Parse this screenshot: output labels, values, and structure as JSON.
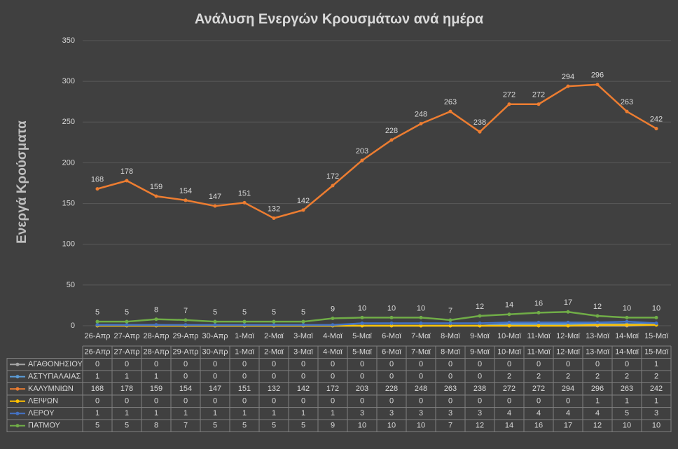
{
  "chart_data": {
    "type": "line",
    "title": "Ανάλυση Ενεργών Κρουσμάτων ανά ημέρα",
    "y_label": "Ενεργά Κρούσματα",
    "categories": [
      "26-Απρ",
      "27-Απρ",
      "28-Απρ",
      "29-Απρ",
      "30-Απρ",
      "1-Μαϊ",
      "2-Μαϊ",
      "3-Μαϊ",
      "4-Μαϊ",
      "5-Μαϊ",
      "6-Μαϊ",
      "7-Μαϊ",
      "8-Μαϊ",
      "9-Μαϊ",
      "10-Μαϊ",
      "11-Μαϊ",
      "12-Μαϊ",
      "13-Μαϊ",
      "14-Μαϊ",
      "15-Μαϊ"
    ],
    "series": [
      {
        "name": "ΑΓΑΘΟΝΗΣΙΟΥ",
        "color": "#a5a5a5",
        "values": [
          0,
          0,
          0,
          0,
          0,
          0,
          0,
          0,
          0,
          0,
          0,
          0,
          0,
          0,
          0,
          0,
          0,
          0,
          0,
          1
        ]
      },
      {
        "name": "ΑΣΤΥΠΑΛΑΙΑΣ",
        "color": "#5b9bd5",
        "values": [
          1,
          1,
          1,
          0,
          0,
          0,
          0,
          0,
          0,
          0,
          0,
          0,
          0,
          0,
          2,
          2,
          2,
          2,
          2,
          2
        ]
      },
      {
        "name": "ΚΑΛΥΜΝΙΩΝ",
        "color": "#ed7d31",
        "values": [
          168,
          178,
          159,
          154,
          147,
          151,
          132,
          142,
          172,
          203,
          228,
          248,
          263,
          238,
          272,
          272,
          294,
          296,
          263,
          242
        ]
      },
      {
        "name": "ΛΕΙΨΩΝ",
        "color": "#ffc000",
        "values": [
          0,
          0,
          0,
          0,
          0,
          0,
          0,
          0,
          0,
          0,
          0,
          0,
          0,
          0,
          0,
          0,
          0,
          1,
          1,
          1
        ]
      },
      {
        "name": "ΛΕΡΟΥ",
        "color": "#4472c4",
        "values": [
          1,
          1,
          1,
          1,
          1,
          1,
          1,
          1,
          1,
          3,
          3,
          3,
          3,
          3,
          4,
          4,
          4,
          4,
          5,
          3
        ]
      },
      {
        "name": "ΠΑΤΜΟΥ",
        "color": "#70ad47",
        "values": [
          5,
          5,
          8,
          7,
          5,
          5,
          5,
          5,
          9,
          10,
          10,
          10,
          7,
          12,
          14,
          16,
          17,
          12,
          10,
          10
        ]
      }
    ],
    "ylim": [
      0,
      350
    ],
    "yticks": [
      0,
      50,
      100,
      150,
      200,
      250,
      300,
      350
    ],
    "grid": true
  }
}
